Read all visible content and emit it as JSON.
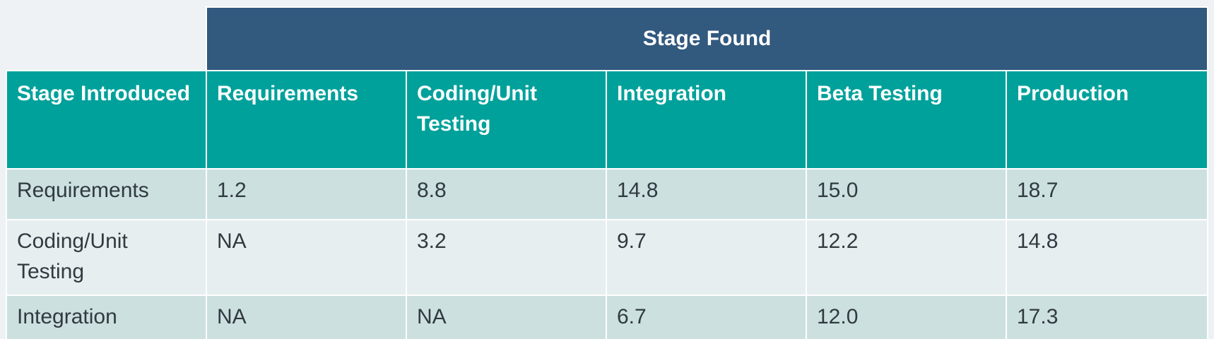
{
  "table": {
    "group_header": "Stage Found",
    "corner_header": "Stage Introduced",
    "columns": [
      "Requirements",
      "Coding/Unit Testing",
      "Integration",
      "Beta Testing",
      "Production"
    ],
    "rows": [
      {
        "label": "Requirements",
        "values": [
          "1.2",
          "8.8",
          "14.8",
          "15.0",
          "18.7"
        ]
      },
      {
        "label": "Coding/Unit Testing",
        "values": [
          "NA",
          "3.2",
          "9.7",
          "12.2",
          "14.8"
        ]
      },
      {
        "label": "Integration",
        "values": [
          "NA",
          "NA",
          "6.7",
          "12.0",
          "17.3"
        ]
      }
    ]
  },
  "colors": {
    "group_header_bg": "#32597e",
    "column_header_bg": "#00a19b",
    "row_band_a": "#cce0e0",
    "row_band_b": "#e6eeef",
    "body_text": "#303a40"
  }
}
